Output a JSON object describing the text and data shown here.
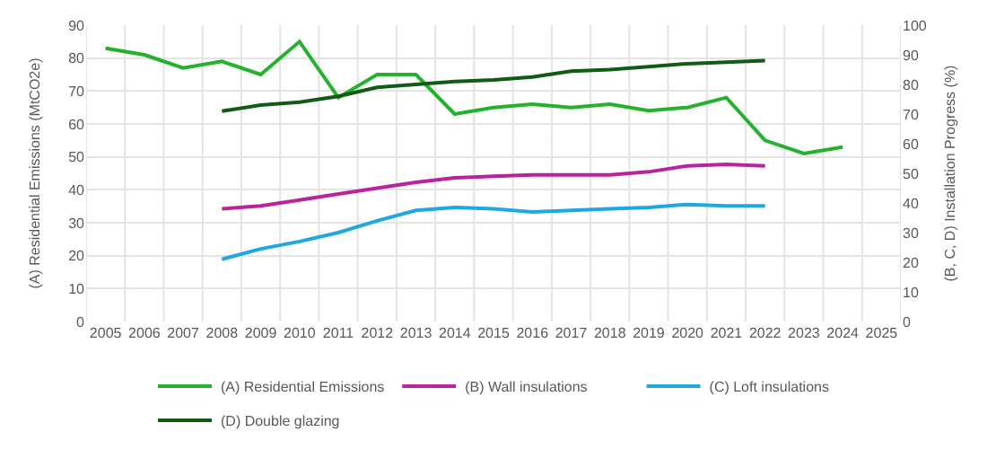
{
  "chart_data": {
    "type": "line",
    "ylabel": "(A) Residential Emissions (MtCO2e)",
    "y2label": "(B, C, D) Installation Progress (%)",
    "categories": [
      "2005",
      "2006",
      "2007",
      "2008",
      "2009",
      "2010",
      "2011",
      "2012",
      "2013",
      "2014",
      "2015",
      "2016",
      "2017",
      "2018",
      "2019",
      "2020",
      "2021",
      "2022",
      "2023",
      "2024",
      "2025"
    ],
    "series": [
      {
        "name": "(A) Residential Emissions",
        "color": "#22b22b",
        "values": [
          83,
          81,
          77,
          79,
          75,
          85,
          68,
          75,
          75,
          63,
          65,
          66,
          65,
          66,
          64,
          65,
          68,
          55,
          51,
          53,
          null
        ]
      },
      {
        "name": "(B) Wall insulations",
        "color": "#b8249c",
        "axis": "y2",
        "values": [
          null,
          null,
          null,
          38,
          39,
          41,
          43,
          45,
          47,
          48.5,
          49,
          49.5,
          49.5,
          49.5,
          50.5,
          52.5,
          53,
          52.5,
          null,
          null,
          null
        ]
      },
      {
        "name": "(C) Loft insulations",
        "color": "#1ea7e0",
        "axis": "y2",
        "values": [
          null,
          null,
          null,
          21,
          24.5,
          27,
          30,
          34,
          37.5,
          38.5,
          38,
          37,
          37.5,
          38,
          38.5,
          39.5,
          39,
          39,
          null,
          null,
          null
        ]
      },
      {
        "name": "(D) Double glazing",
        "color": "#0f5c14",
        "axis": "y2",
        "values": [
          null,
          null,
          null,
          71,
          73,
          74,
          76,
          79,
          80,
          81,
          81.5,
          82.5,
          84.5,
          85,
          86,
          87,
          87.5,
          88,
          null,
          null,
          null
        ]
      }
    ],
    "ylim": [
      0,
      90
    ],
    "yticks": [
      0,
      10,
      20,
      30,
      40,
      50,
      60,
      70,
      80,
      90
    ],
    "y2lim": [
      0,
      100
    ],
    "y2ticks": [
      0,
      10,
      20,
      30,
      40,
      50,
      60,
      70,
      80,
      90,
      100
    ],
    "grid": true,
    "legend": "bottom",
    "marker": "none",
    "line_style": "solid"
  }
}
